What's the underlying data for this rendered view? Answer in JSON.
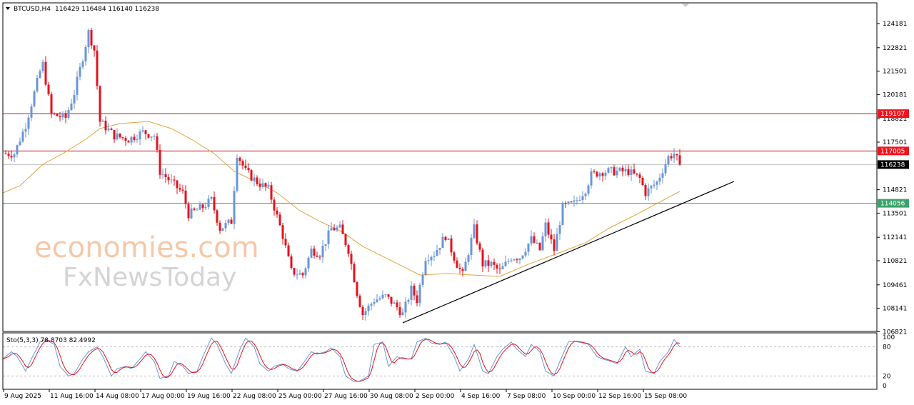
{
  "header": {
    "symbol_label": "BTCUSD,H4",
    "ohlc": "116429 116484 116140 116238"
  },
  "watermark": {
    "line1": "economies.com",
    "line2": "FxNewsToday"
  },
  "colors": {
    "bull": "#6a95d8",
    "bear": "#e3121c",
    "ma": "#e6a23c",
    "resistance": "#c8141c",
    "support": "#3aa36a",
    "trendline": "#000000",
    "stoch_main": "#6a95d8",
    "stoch_signal": "#e3121c",
    "current_price": "#000000"
  },
  "chart_data": {
    "type": "candlestick",
    "timeframe": "H4",
    "ylim": [
      106821,
      124900
    ],
    "y_ticks": [
      124181,
      122821,
      121501,
      120181,
      118821,
      117501,
      114821,
      113501,
      112141,
      110821,
      109461,
      108141,
      106821
    ],
    "x_ticks": [
      {
        "bar": 0,
        "label": "9 Aug 2025"
      },
      {
        "bar": 16,
        "label": "11 Aug 16:00"
      },
      {
        "bar": 32,
        "label": "14 Aug 08:00"
      },
      {
        "bar": 48,
        "label": "17 Aug 00:00"
      },
      {
        "bar": 64,
        "label": "19 Aug 16:00"
      },
      {
        "bar": 80,
        "label": "22 Aug 08:00"
      },
      {
        "bar": 96,
        "label": "25 Aug 00:00"
      },
      {
        "bar": 112,
        "label": "27 Aug 16:00"
      },
      {
        "bar": 128,
        "label": "30 Aug 08:00"
      },
      {
        "bar": 144,
        "label": "2 Sep 00:00"
      },
      {
        "bar": 160,
        "label": "4 Sep 16:00"
      },
      {
        "bar": 176,
        "label": "7 Sep 08:00"
      },
      {
        "bar": 192,
        "label": "10 Sep 00:00"
      },
      {
        "bar": 208,
        "label": "12 Sep 16:00"
      },
      {
        "bar": 224,
        "label": "15 Sep 08:00"
      }
    ],
    "close_path": [
      [
        0,
        116857
      ],
      [
        3,
        116857
      ],
      [
        7,
        118467
      ],
      [
        12,
        121485
      ],
      [
        13,
        121887
      ],
      [
        16,
        119070
      ],
      [
        21,
        118869
      ],
      [
        24,
        120278
      ],
      [
        27,
        122290
      ],
      [
        29,
        123698
      ],
      [
        31,
        122692
      ],
      [
        33,
        118668
      ],
      [
        38,
        117863
      ],
      [
        43,
        117662
      ],
      [
        48,
        118064
      ],
      [
        52,
        117863
      ],
      [
        54,
        115851
      ],
      [
        58,
        115248
      ],
      [
        62,
        114644
      ],
      [
        64,
        113437
      ],
      [
        69,
        113839
      ],
      [
        72,
        114242
      ],
      [
        75,
        112632
      ],
      [
        79,
        113035
      ],
      [
        81,
        116857
      ],
      [
        84,
        115851
      ],
      [
        88,
        115248
      ],
      [
        92,
        114845
      ],
      [
        94,
        113839
      ],
      [
        97,
        112230
      ],
      [
        100,
        110218
      ],
      [
        104,
        110017
      ],
      [
        107,
        111426
      ],
      [
        110,
        111224
      ],
      [
        114,
        112632
      ],
      [
        117,
        112632
      ],
      [
        120,
        111426
      ],
      [
        123,
        109011
      ],
      [
        125,
        107804
      ],
      [
        129,
        108609
      ],
      [
        133,
        108810
      ],
      [
        137,
        108206
      ],
      [
        139,
        107804
      ],
      [
        142,
        109212
      ],
      [
        144,
        108609
      ],
      [
        147,
        111023
      ],
      [
        150,
        111224
      ],
      [
        154,
        112230
      ],
      [
        158,
        110621
      ],
      [
        160,
        110017
      ],
      [
        164,
        112632
      ],
      [
        167,
        110621
      ],
      [
        170,
        110621
      ],
      [
        173,
        110218
      ],
      [
        177,
        111023
      ],
      [
        180,
        111023
      ],
      [
        184,
        112029
      ],
      [
        187,
        111426
      ],
      [
        189,
        112832
      ],
      [
        192,
        111426
      ],
      [
        195,
        113839
      ],
      [
        199,
        114041
      ],
      [
        203,
        114845
      ],
      [
        205,
        115650
      ],
      [
        209,
        115851
      ],
      [
        213,
        115851
      ],
      [
        218,
        115851
      ],
      [
        222,
        115449
      ],
      [
        224,
        114644
      ],
      [
        228,
        115248
      ],
      [
        232,
        116656
      ],
      [
        234,
        116857
      ],
      [
        236,
        116238
      ]
    ],
    "ma_path": [
      [
        -1,
        114644
      ],
      [
        5,
        115046
      ],
      [
        13,
        116254
      ],
      [
        20,
        116857
      ],
      [
        28,
        117662
      ],
      [
        33,
        118266
      ],
      [
        40,
        118547
      ],
      [
        50,
        118668
      ],
      [
        58,
        118266
      ],
      [
        65,
        117662
      ],
      [
        73,
        116857
      ],
      [
        80,
        115851
      ],
      [
        88,
        115248
      ],
      [
        95,
        114644
      ],
      [
        103,
        113638
      ],
      [
        110,
        113035
      ],
      [
        118,
        112431
      ],
      [
        125,
        111627
      ],
      [
        135,
        110822
      ],
      [
        145,
        110017
      ],
      [
        155,
        110098
      ],
      [
        163,
        110017
      ],
      [
        173,
        109937
      ],
      [
        183,
        110621
      ],
      [
        193,
        111224
      ],
      [
        203,
        111828
      ],
      [
        211,
        112632
      ],
      [
        221,
        113437
      ],
      [
        228,
        114041
      ],
      [
        236,
        114725
      ]
    ],
    "trendline": {
      "from": [
        139,
        107321
      ],
      "to": [
        255,
        115288
      ]
    },
    "horizontal_levels": [
      {
        "price": 119107,
        "label": "119107",
        "type": "resistance"
      },
      {
        "price": 117005,
        "label": "117005",
        "type": "resistance"
      },
      {
        "price": 114056,
        "label": "114056",
        "type": "support"
      }
    ],
    "current_price": {
      "price": 116238,
      "label": "116238"
    },
    "stochastic": {
      "label": "Sto(5,3,3) 78.8703 82.4992",
      "levels": [
        80,
        20
      ],
      "axis_labels": [
        "100",
        "80",
        "20",
        "0"
      ],
      "k_path": [
        [
          -1,
          55
        ],
        [
          2,
          70
        ],
        [
          4,
          60
        ],
        [
          7,
          30
        ],
        [
          9,
          55
        ],
        [
          12,
          90
        ],
        [
          14,
          95
        ],
        [
          17,
          85
        ],
        [
          19,
          40
        ],
        [
          22,
          20
        ],
        [
          24,
          25
        ],
        [
          27,
          55
        ],
        [
          29,
          70
        ],
        [
          32,
          80
        ],
        [
          34,
          60
        ],
        [
          37,
          20
        ],
        [
          39,
          35
        ],
        [
          42,
          40
        ],
        [
          44,
          35
        ],
        [
          47,
          55
        ],
        [
          49,
          70
        ],
        [
          52,
          50
        ],
        [
          54,
          15
        ],
        [
          57,
          20
        ],
        [
          59,
          50
        ],
        [
          62,
          40
        ],
        [
          64,
          25
        ],
        [
          67,
          30
        ],
        [
          69,
          60
        ],
        [
          72,
          98
        ],
        [
          74,
          85
        ],
        [
          77,
          45
        ],
        [
          79,
          25
        ],
        [
          82,
          75
        ],
        [
          84,
          98
        ],
        [
          87,
          80
        ],
        [
          89,
          45
        ],
        [
          92,
          30
        ],
        [
          94,
          40
        ],
        [
          97,
          45
        ],
        [
          99,
          35
        ],
        [
          102,
          30
        ],
        [
          104,
          45
        ],
        [
          107,
          70
        ],
        [
          109,
          65
        ],
        [
          112,
          70
        ],
        [
          114,
          78
        ],
        [
          117,
          60
        ],
        [
          119,
          20
        ],
        [
          122,
          8
        ],
        [
          124,
          10
        ],
        [
          127,
          20
        ],
        [
          129,
          85
        ],
        [
          132,
          90
        ],
        [
          134,
          40
        ],
        [
          137,
          60
        ],
        [
          139,
          55
        ],
        [
          142,
          55
        ],
        [
          144,
          90
        ],
        [
          147,
          98
        ],
        [
          149,
          88
        ],
        [
          152,
          85
        ],
        [
          154,
          90
        ],
        [
          157,
          60
        ],
        [
          159,
          30
        ],
        [
          162,
          55
        ],
        [
          164,
          85
        ],
        [
          167,
          30
        ],
        [
          169,
          25
        ],
        [
          172,
          60
        ],
        [
          174,
          75
        ],
        [
          177,
          90
        ],
        [
          179,
          75
        ],
        [
          182,
          60
        ],
        [
          184,
          85
        ],
        [
          187,
          70
        ],
        [
          189,
          30
        ],
        [
          192,
          20
        ],
        [
          194,
          50
        ],
        [
          197,
          90
        ],
        [
          199,
          92
        ],
        [
          202,
          88
        ],
        [
          204,
          85
        ],
        [
          207,
          60
        ],
        [
          209,
          55
        ],
        [
          212,
          50
        ],
        [
          214,
          45
        ],
        [
          217,
          80
        ],
        [
          219,
          60
        ],
        [
          222,
          75
        ],
        [
          224,
          30
        ],
        [
          227,
          25
        ],
        [
          229,
          50
        ],
        [
          232,
          70
        ],
        [
          234,
          95
        ],
        [
          236,
          80
        ]
      ]
    }
  }
}
